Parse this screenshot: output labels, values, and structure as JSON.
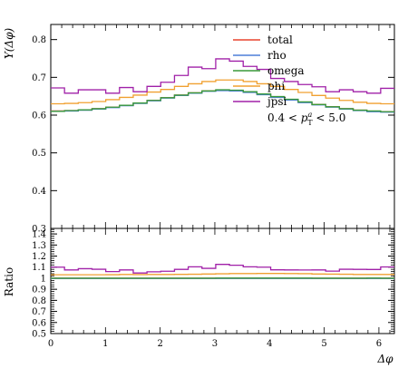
{
  "chart_data": {
    "type": "line",
    "step": true,
    "x_edges": [
      0.0,
      0.2513,
      0.5027,
      0.754,
      1.0053,
      1.2566,
      1.508,
      1.7593,
      2.0106,
      2.262,
      2.5133,
      2.7646,
      3.0159,
      3.2673,
      3.5186,
      3.7699,
      4.0212,
      4.2726,
      4.5239,
      4.7752,
      5.0265,
      5.2779,
      5.5292,
      5.7805,
      6.0319,
      6.2832
    ],
    "xlim": [
      0,
      6.2832
    ],
    "xlabel": "Δφ",
    "x_ticks": [
      0,
      1,
      2,
      3,
      4,
      5,
      6
    ],
    "x_tick_labels": [
      "0",
      "1",
      "2",
      "3",
      "4",
      "5",
      "6"
    ],
    "main": {
      "ylabel": "Y(Δφ)",
      "ylim": [
        0.3,
        0.84
      ],
      "y_ticks": [
        0.3,
        0.4,
        0.5,
        0.6,
        0.7,
        0.8
      ],
      "y_tick_labels": [
        "0.3",
        "0.4",
        "0.5",
        "0.6",
        "0.7",
        "0.8"
      ],
      "series": [
        {
          "name": "total",
          "color": "#e8442f",
          "values": [
            0.611,
            0.612,
            0.614,
            0.617,
            0.621,
            0.626,
            0.632,
            0.639,
            0.646,
            0.653,
            0.659,
            0.664,
            0.666,
            0.665,
            0.661,
            0.655,
            0.648,
            0.641,
            0.634,
            0.628,
            0.622,
            0.617,
            0.613,
            0.61,
            0.609
          ]
        },
        {
          "name": "rho",
          "color": "#4d7ed8",
          "values": [
            0.61,
            0.611,
            0.613,
            0.616,
            0.62,
            0.625,
            0.631,
            0.638,
            0.645,
            0.652,
            0.658,
            0.663,
            0.665,
            0.664,
            0.66,
            0.654,
            0.647,
            0.64,
            0.633,
            0.627,
            0.621,
            0.616,
            0.612,
            0.609,
            0.608
          ]
        },
        {
          "name": "omega",
          "color": "#3a9a3a",
          "values": [
            0.61,
            0.612,
            0.614,
            0.617,
            0.621,
            0.626,
            0.632,
            0.639,
            0.646,
            0.653,
            0.659,
            0.664,
            0.667,
            0.666,
            0.662,
            0.656,
            0.649,
            0.642,
            0.635,
            0.628,
            0.622,
            0.617,
            0.613,
            0.611,
            0.609
          ]
        },
        {
          "name": "phi",
          "color": "#f0a030",
          "values": [
            0.63,
            0.631,
            0.633,
            0.636,
            0.641,
            0.647,
            0.653,
            0.661,
            0.668,
            0.676,
            0.683,
            0.689,
            0.693,
            0.693,
            0.689,
            0.683,
            0.676,
            0.668,
            0.66,
            0.652,
            0.645,
            0.639,
            0.634,
            0.631,
            0.63
          ]
        },
        {
          "name": "jpsi",
          "color": "#a020a8",
          "values": [
            0.672,
            0.658,
            0.667,
            0.667,
            0.658,
            0.673,
            0.662,
            0.676,
            0.687,
            0.705,
            0.727,
            0.723,
            0.749,
            0.743,
            0.729,
            0.721,
            0.697,
            0.689,
            0.681,
            0.675,
            0.662,
            0.667,
            0.662,
            0.658,
            0.671
          ]
        }
      ],
      "annotation": "0.4 < p_T^a < 5.0"
    },
    "ratio": {
      "ylabel": "Ratio",
      "ylim": [
        0.5,
        1.45
      ],
      "y_ticks": [
        0.5,
        0.6,
        0.7,
        0.8,
        0.9,
        1.0,
        1.1,
        1.2,
        1.3,
        1.4
      ],
      "y_tick_labels": [
        "0.5",
        "0.6",
        "0.7",
        "0.8",
        "0.9",
        "1",
        "1.1",
        "1.2",
        "1.3",
        "1.4"
      ],
      "series": [
        {
          "name": "total",
          "color": "#e8442f",
          "values": [
            1.0,
            1.0,
            1.0,
            1.0,
            1.0,
            1.0,
            1.0,
            1.0,
            1.0,
            1.0,
            1.0,
            1.0,
            1.0,
            1.0,
            1.0,
            1.0,
            1.0,
            1.0,
            1.0,
            1.0,
            1.0,
            1.0,
            1.0,
            1.0,
            1.0
          ]
        },
        {
          "name": "rho",
          "color": "#4d7ed8",
          "values": [
            0.998,
            0.998,
            0.998,
            0.998,
            0.998,
            0.998,
            0.998,
            0.998,
            0.998,
            0.998,
            0.998,
            0.998,
            0.998,
            0.998,
            0.998,
            0.998,
            0.998,
            0.998,
            0.998,
            0.998,
            0.998,
            0.998,
            0.998,
            0.998,
            0.998
          ]
        },
        {
          "name": "omega",
          "color": "#3a9a3a",
          "values": [
            1.0,
            1.0,
            1.0,
            1.0,
            1.0,
            1.0,
            1.0,
            1.0,
            1.0,
            1.0,
            1.0,
            1.0,
            1.001,
            1.001,
            1.001,
            1.001,
            1.001,
            1.001,
            1.001,
            1.0,
            1.0,
            1.0,
            1.0,
            1.001,
            1.0
          ]
        },
        {
          "name": "phi",
          "color": "#f0a030",
          "values": [
            1.031,
            1.031,
            1.031,
            1.031,
            1.032,
            1.034,
            1.033,
            1.034,
            1.034,
            1.035,
            1.036,
            1.038,
            1.04,
            1.042,
            1.042,
            1.043,
            1.043,
            1.042,
            1.041,
            1.038,
            1.037,
            1.036,
            1.034,
            1.034,
            1.034
          ]
        },
        {
          "name": "jpsi",
          "color": "#a020a8",
          "values": [
            1.1,
            1.075,
            1.086,
            1.081,
            1.06,
            1.075,
            1.047,
            1.058,
            1.063,
            1.08,
            1.103,
            1.089,
            1.125,
            1.117,
            1.103,
            1.1,
            1.076,
            1.075,
            1.074,
            1.075,
            1.064,
            1.081,
            1.08,
            1.079,
            1.102
          ]
        }
      ]
    },
    "legend": {
      "placement": "top-right",
      "entries": [
        "total",
        "rho",
        "omega",
        "phi",
        "jpsi"
      ]
    }
  }
}
